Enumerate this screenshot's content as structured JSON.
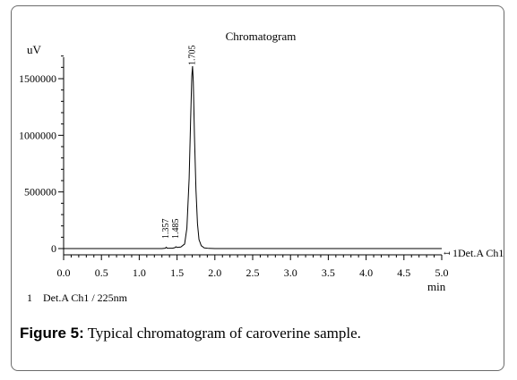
{
  "figure": {
    "caption_label": "Figure 5:",
    "caption_text": " Typical chromatogram of caroverine sample."
  },
  "chart_data": {
    "type": "line",
    "title": "Chromatogram",
    "ylabel": "uV",
    "xlabel": "min",
    "xlim": [
      0.0,
      5.0
    ],
    "ylim": [
      -80000,
      1760000
    ],
    "x_ticks": [
      "0.0",
      "0.5",
      "1.0",
      "1.5",
      "2.0",
      "2.5",
      "3.0",
      "3.5",
      "4.0",
      "4.5",
      "5.0"
    ],
    "y_ticks": [
      "0",
      "500000",
      "1000000",
      "1500000"
    ],
    "series": [
      {
        "name": "1 Det.A Ch1",
        "x": [
          0.0,
          1.3,
          1.345,
          1.357,
          1.37,
          1.44,
          1.47,
          1.485,
          1.5,
          1.55,
          1.6,
          1.63,
          1.66,
          1.68,
          1.695,
          1.705,
          1.715,
          1.73,
          1.75,
          1.77,
          1.79,
          1.82,
          1.86,
          1.92,
          2.0,
          5.0
        ],
        "y": [
          0,
          0,
          3000,
          12000,
          3000,
          3000,
          8000,
          16000,
          10000,
          14000,
          40000,
          180000,
          620000,
          1150000,
          1520000,
          1610000,
          1470000,
          1000000,
          520000,
          220000,
          80000,
          25000,
          6000,
          1500,
          0,
          0
        ]
      }
    ],
    "peak_labels": [
      {
        "x": 1.357,
        "label": "1.357"
      },
      {
        "x": 1.485,
        "label": "1.485"
      },
      {
        "x": 1.705,
        "label": "1.705"
      }
    ],
    "legend_bottom": "1    Det.A Ch1 / 225nm",
    "series_end_label": "1Det.A Ch1",
    "grid": false
  }
}
